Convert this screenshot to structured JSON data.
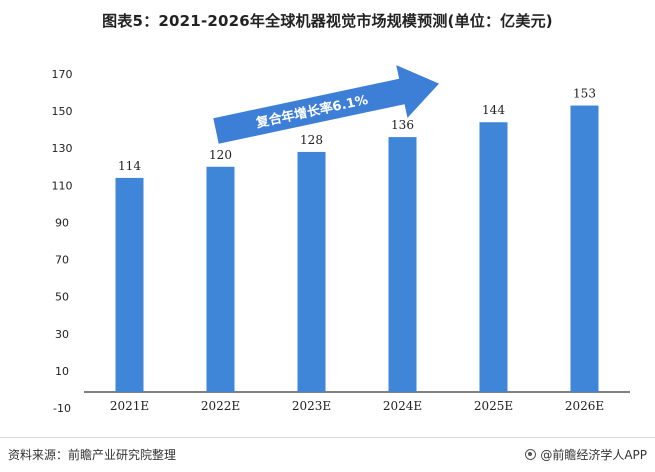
{
  "title": "图表5：2021-2026年全球机器视觉市场规模预测(单位：亿美元)",
  "annotation": "复合年增长率6.1%",
  "source": "资料来源：前瞻产业研究院整理",
  "brand": "@前瞻经济学人APP",
  "colors": {
    "bar": "#3f86d8",
    "arrow": "#3d7fd6",
    "axis": "#000000"
  },
  "chart_data": {
    "type": "bar",
    "categories": [
      "2021E",
      "2022E",
      "2023E",
      "2024E",
      "2025E",
      "2026E"
    ],
    "values": [
      114,
      120,
      128,
      136,
      144,
      153
    ],
    "ylim": [
      -10,
      170
    ],
    "yticks": [
      -10,
      10,
      30,
      50,
      70,
      90,
      110,
      130,
      150,
      170
    ],
    "title": "图表5：2021-2026年全球机器视觉市场规模预测(单位：亿美元)",
    "xlabel": "",
    "ylabel": "",
    "grid": false,
    "annotation": "复合年增长率6.1%"
  }
}
